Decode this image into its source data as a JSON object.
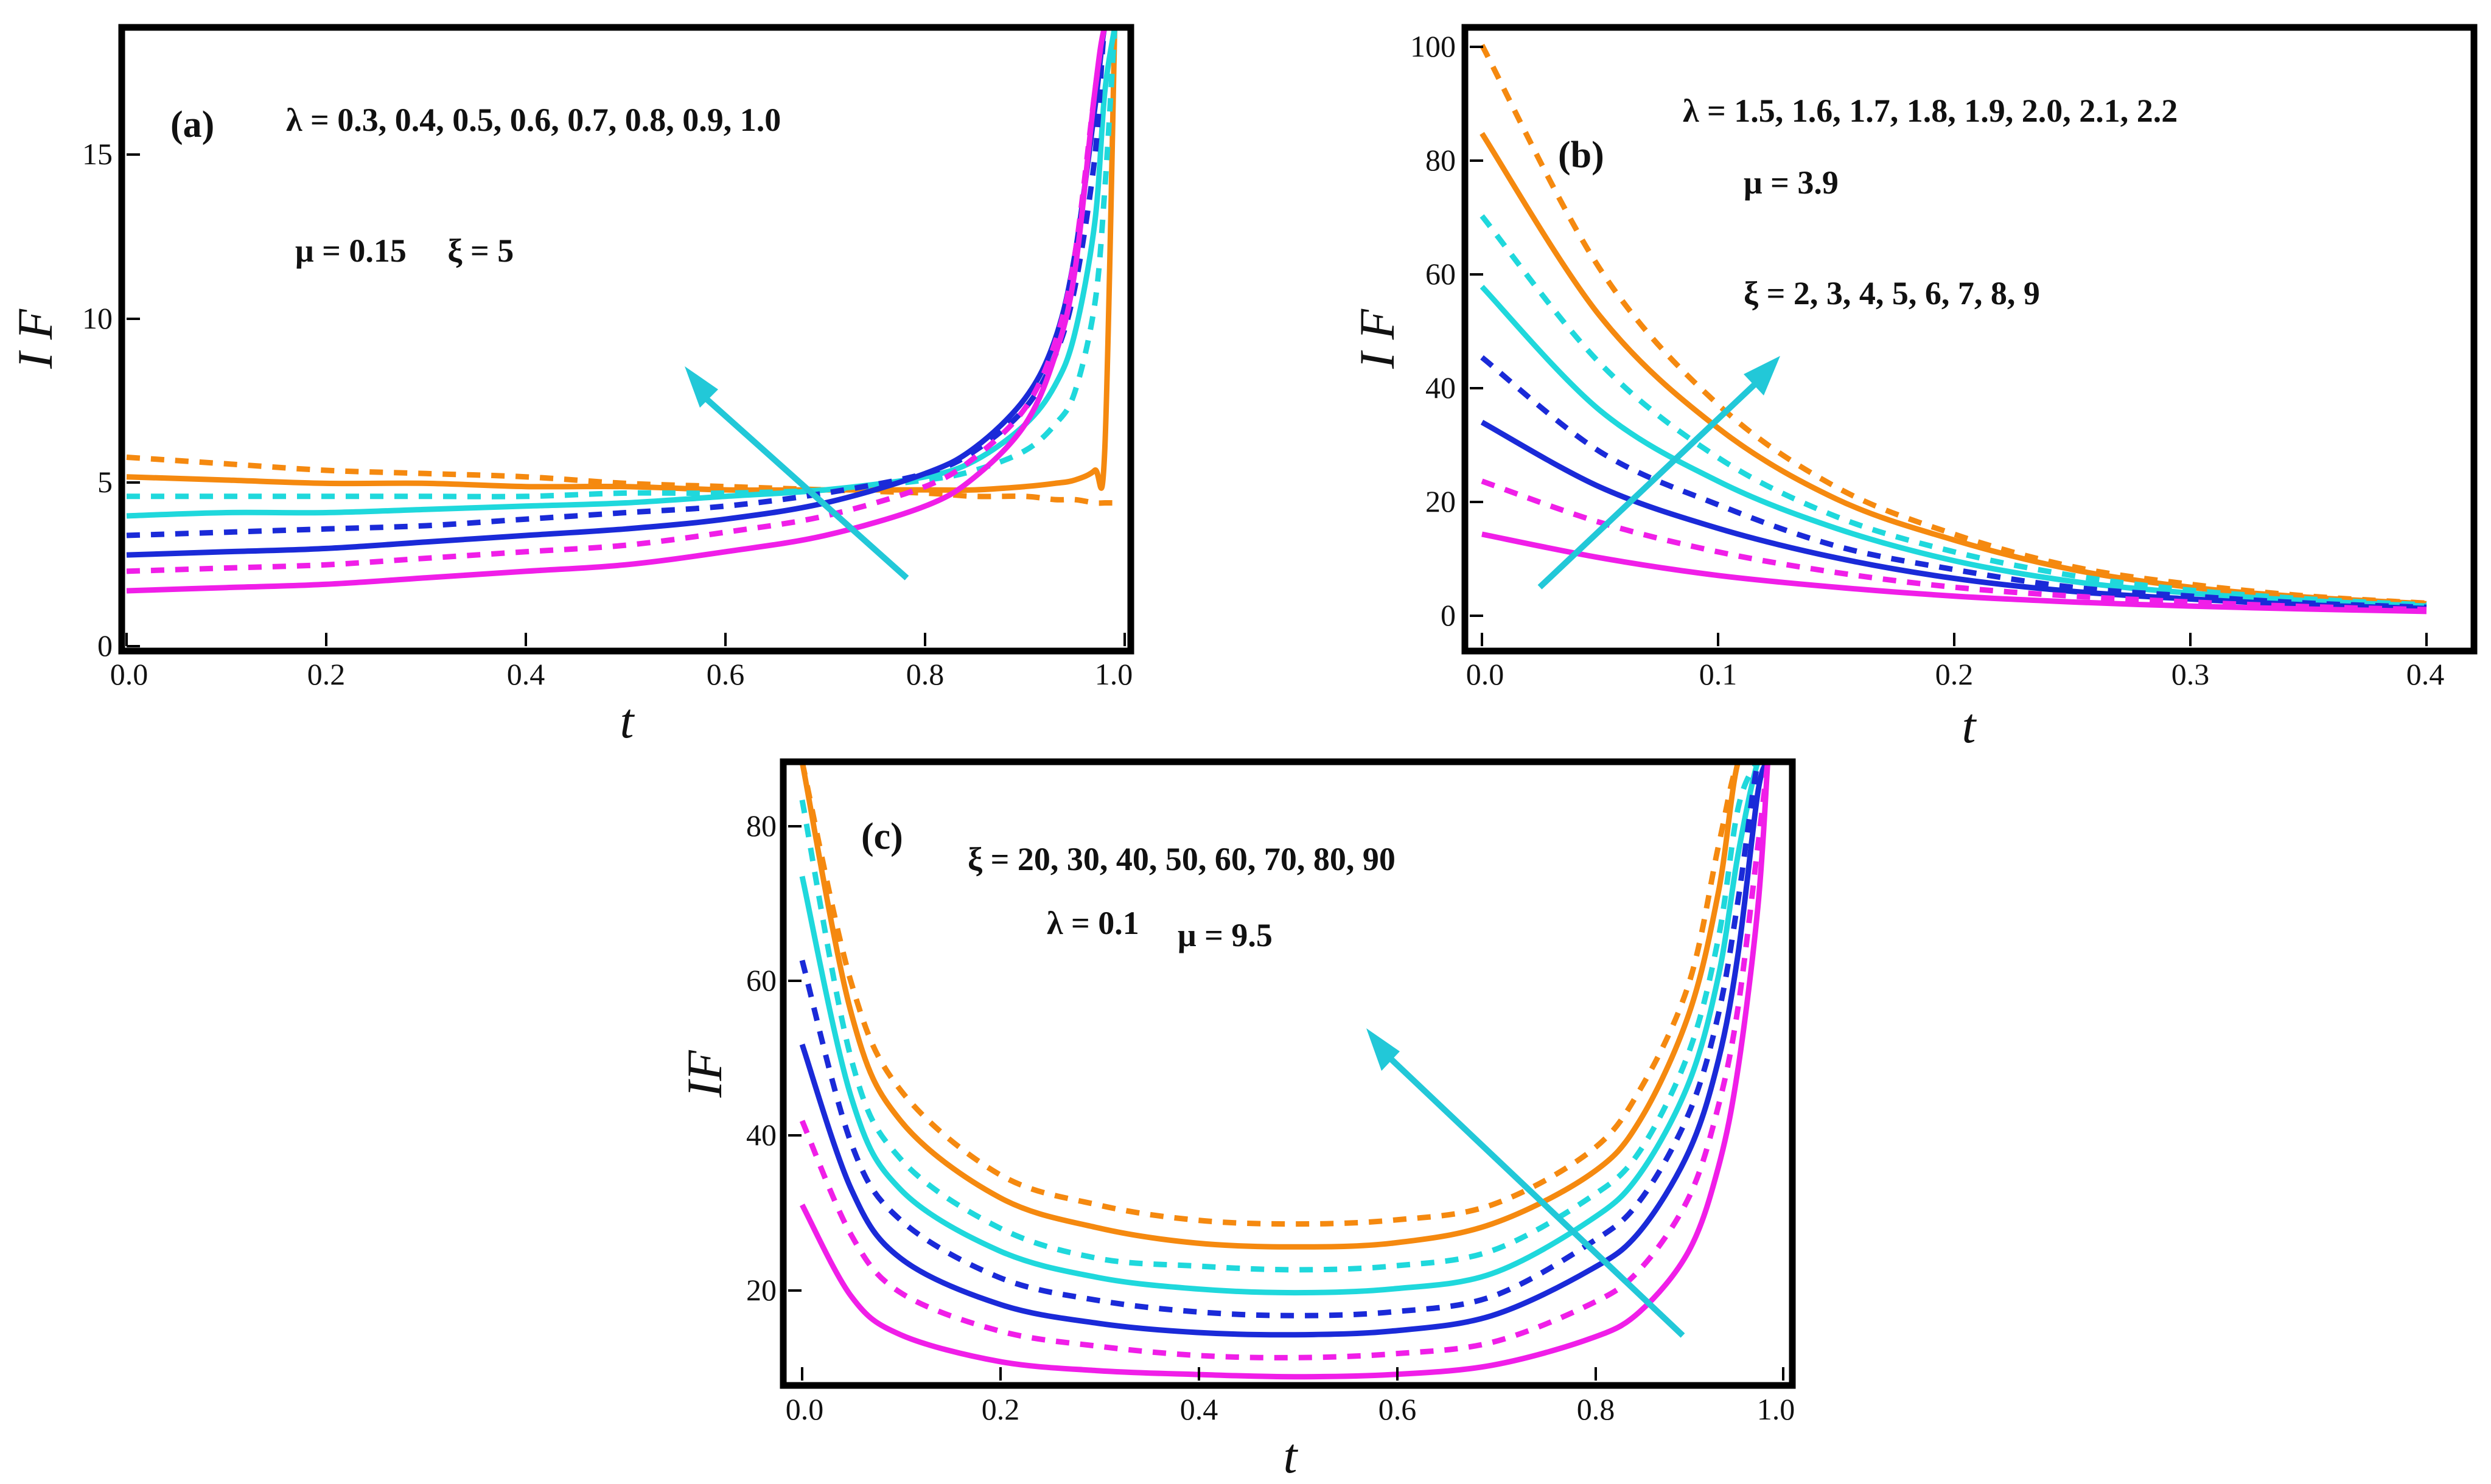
{
  "colors": {
    "orange": "#f5890f",
    "cyan": "#1fd8dc",
    "blue": "#1a2ad8",
    "magenta": "#f01ee8",
    "arrow": "#22c8d8",
    "frame": "#000000"
  },
  "line_styles": [
    {
      "color": "orange",
      "dashed": true
    },
    {
      "color": "orange",
      "dashed": false
    },
    {
      "color": "cyan",
      "dashed": true
    },
    {
      "color": "cyan",
      "dashed": false
    },
    {
      "color": "blue",
      "dashed": true
    },
    {
      "color": "blue",
      "dashed": false
    },
    {
      "color": "magenta",
      "dashed": true
    },
    {
      "color": "magenta",
      "dashed": false
    }
  ],
  "chart_data": [
    {
      "type": "line",
      "panel_label": "(a)",
      "xlabel": "t",
      "ylabel": "I F",
      "xlim": [
        0,
        1.0
      ],
      "ylim": [
        0,
        19
      ],
      "xticks": [
        "0.0",
        "0.2",
        "0.4",
        "0.6",
        "0.8",
        "1.0"
      ],
      "yticks": [
        "0",
        "5",
        "10",
        "15"
      ],
      "annotation_lines": [
        "λ = 0.3, 0.4, 0.5, 0.6, 0.7, 0.8, 0.9, 1.0",
        "μ = 0.15     ξ = 5"
      ],
      "x": [
        0,
        0.1,
        0.2,
        0.3,
        0.4,
        0.5,
        0.6,
        0.7,
        0.8,
        0.85,
        0.9,
        0.93,
        0.95,
        0.97,
        0.98,
        0.99
      ],
      "series": [
        {
          "name": "orange dashed",
          "values": [
            5.8,
            5.6,
            5.4,
            5.3,
            5.2,
            5.0,
            4.9,
            4.8,
            4.7,
            4.6,
            4.6,
            4.5,
            4.5,
            4.4,
            4.4,
            4.4
          ]
        },
        {
          "name": "orange solid",
          "values": [
            5.2,
            5.1,
            5.0,
            5.0,
            4.9,
            4.9,
            4.8,
            4.8,
            4.8,
            4.8,
            4.9,
            5.0,
            5.1,
            5.4,
            6.0,
            19
          ]
        },
        {
          "name": "cyan dashed",
          "values": [
            4.6,
            4.6,
            4.6,
            4.6,
            4.6,
            4.7,
            4.7,
            4.8,
            5.1,
            5.4,
            6.0,
            6.8,
            7.8,
            10.5,
            14,
            19
          ]
        },
        {
          "name": "cyan solid",
          "values": [
            4.0,
            4.1,
            4.1,
            4.2,
            4.3,
            4.4,
            4.6,
            4.8,
            5.2,
            5.7,
            6.8,
            8.0,
            9.6,
            13,
            17,
            19
          ]
        },
        {
          "name": "blue dashed",
          "values": [
            3.4,
            3.5,
            3.6,
            3.7,
            3.9,
            4.1,
            4.3,
            4.7,
            5.3,
            6.0,
            7.3,
            8.9,
            11,
            15,
            19,
            19
          ]
        },
        {
          "name": "blue solid",
          "values": [
            2.8,
            2.9,
            3.0,
            3.2,
            3.4,
            3.6,
            3.9,
            4.4,
            5.3,
            6.1,
            7.6,
            9.4,
            12,
            16.5,
            19,
            19
          ]
        },
        {
          "name": "magenta dashed",
          "values": [
            2.3,
            2.4,
            2.5,
            2.7,
            2.9,
            3.1,
            3.5,
            4.0,
            4.9,
            5.8,
            7.3,
            9.3,
            12,
            17,
            19,
            19
          ]
        },
        {
          "name": "magenta solid",
          "values": [
            1.7,
            1.8,
            1.9,
            2.1,
            2.3,
            2.5,
            2.9,
            3.4,
            4.3,
            5.2,
            6.8,
            8.9,
            11.5,
            17,
            19,
            19
          ]
        }
      ]
    },
    {
      "type": "line",
      "panel_label": "(b)",
      "xlabel": "t",
      "ylabel": "I F",
      "xlim": [
        0,
        0.4
      ],
      "ylim": [
        -5,
        100
      ],
      "xticks": [
        "0.0",
        "0.1",
        "0.2",
        "0.3",
        "0.4"
      ],
      "yticks": [
        "0",
        "20",
        "40",
        "60",
        "80",
        "100"
      ],
      "annotation_lines": [
        "λ = 1.5, 1.6, 1.7, 1.8, 1.9, 2.0, 2.1, 2.2",
        "μ = 3.9",
        "ξ = 2, 3, 4, 5, 6, 7, 8, 9"
      ],
      "x": [
        0,
        0.05,
        0.1,
        0.15,
        0.2,
        0.25,
        0.3,
        0.35,
        0.4
      ],
      "series": [
        {
          "name": "orange dashed",
          "values": [
            97,
            59,
            36,
            22,
            14,
            8.5,
            5.5,
            3.5,
            2.3
          ]
        },
        {
          "name": "orange solid",
          "values": [
            82,
            51,
            32,
            20,
            13,
            8,
            5,
            3.3,
            2.2
          ]
        },
        {
          "name": "cyan dashed",
          "values": [
            68,
            43,
            27,
            17,
            11,
            7,
            4.5,
            3,
            2
          ]
        },
        {
          "name": "cyan solid",
          "values": [
            56,
            35,
            23,
            15,
            9.5,
            6,
            4,
            2.7,
            1.8
          ]
        },
        {
          "name": "blue dashed",
          "values": [
            44,
            28,
            19,
            12,
            8,
            5,
            3.5,
            2.3,
            1.6
          ]
        },
        {
          "name": "blue solid",
          "values": [
            33,
            22,
            15,
            10,
            6.5,
            4.3,
            3,
            2,
            1.4
          ]
        },
        {
          "name": "magenta dashed",
          "values": [
            23,
            16,
            11,
            7.5,
            5,
            3.5,
            2.5,
            1.7,
            1.2
          ]
        },
        {
          "name": "magenta solid",
          "values": [
            14,
            10,
            7,
            5,
            3.5,
            2.5,
            1.8,
            1.3,
            0.9
          ]
        }
      ]
    },
    {
      "type": "line",
      "panel_label": "(c)",
      "xlabel": "t",
      "ylabel": "IF",
      "xlim": [
        0,
        1.0
      ],
      "ylim": [
        8,
        89
      ],
      "xticks": [
        "0.0",
        "0.2",
        "0.4",
        "0.6",
        "0.8",
        "1.0"
      ],
      "yticks": [
        "20",
        "40",
        "60",
        "80"
      ],
      "annotation_lines": [
        "ξ = 20, 30, 40, 50, 60, 70, 80, 90",
        "λ = 0.1",
        "μ = 9.5"
      ],
      "x": [
        0.0,
        0.05,
        0.1,
        0.2,
        0.3,
        0.4,
        0.5,
        0.6,
        0.7,
        0.8,
        0.85,
        0.9,
        0.93,
        0.95,
        0.97,
        0.98
      ],
      "series": [
        {
          "name": "orange dashed",
          "values": [
            89,
            60,
            46,
            35,
            31,
            29,
            28.5,
            29,
            31,
            38,
            46,
            60,
            78,
            89,
            89,
            89
          ]
        },
        {
          "name": "orange solid",
          "values": [
            89,
            56,
            42,
            32,
            28,
            26,
            25.5,
            26,
            28.5,
            35,
            42,
            56,
            72,
            89,
            89,
            89
          ]
        },
        {
          "name": "cyan dashed",
          "values": [
            84,
            50,
            37,
            28,
            24,
            23,
            22.5,
            23,
            25,
            32,
            38,
            51,
            66,
            83,
            89,
            89
          ]
        },
        {
          "name": "cyan solid",
          "values": [
            74,
            45,
            33,
            25,
            21.5,
            20,
            19.5,
            20,
            22,
            29,
            35,
            47,
            61,
            77,
            89,
            89
          ]
        },
        {
          "name": "blue dashed",
          "values": [
            63,
            39,
            29,
            21.5,
            18.5,
            17,
            16.5,
            17,
            19,
            26,
            31.5,
            43,
            56,
            71,
            89,
            89
          ]
        },
        {
          "name": "blue solid",
          "values": [
            52,
            33,
            24,
            18,
            15.5,
            14.3,
            14,
            14.5,
            16.5,
            22.5,
            27.5,
            38,
            50,
            64,
            85,
            89
          ]
        },
        {
          "name": "magenta dashed",
          "values": [
            42,
            27,
            19.5,
            14.5,
            12.5,
            11.3,
            11,
            11.5,
            13,
            18,
            22.5,
            32,
            44,
            57,
            78,
            89
          ]
        },
        {
          "name": "magenta solid",
          "values": [
            31,
            19,
            14,
            10.5,
            9.3,
            8.8,
            8.5,
            8.8,
            10,
            13.5,
            17,
            25,
            36,
            49,
            70,
            89
          ]
        }
      ]
    }
  ]
}
